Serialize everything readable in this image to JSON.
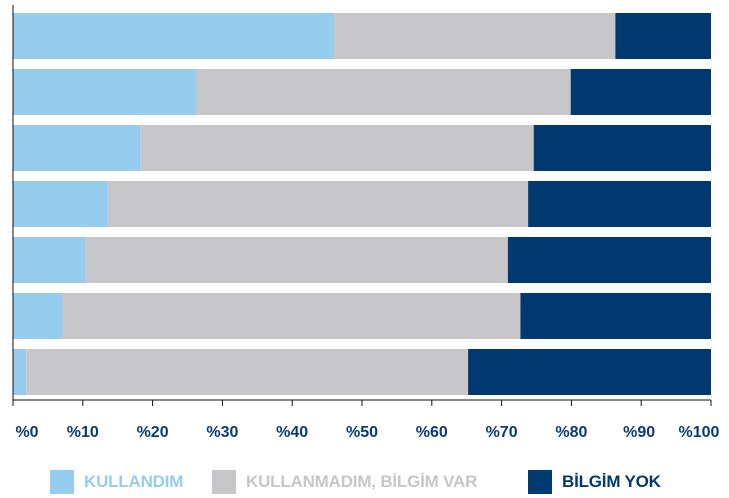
{
  "colors": {
    "kullandim": "#96cdef",
    "kullanmadim": "#c7c6c9",
    "bilgim_yok": "#003a70",
    "axis": "#111111",
    "tick_text": "#0a3a78",
    "legend_text_kullandim": "#96cdef",
    "legend_text_kullanmadim": "#c7c6c9",
    "legend_text_bilgim_yok": "#003a70"
  },
  "chart_data": {
    "type": "bar",
    "orientation": "horizontal",
    "stacked": true,
    "xlim": [
      0,
      100
    ],
    "x_ticks": [
      0,
      10,
      20,
      30,
      40,
      50,
      60,
      70,
      80,
      90,
      100
    ],
    "x_tick_labels": [
      "%0",
      "%10",
      "%20",
      "%30",
      "%40",
      "%50",
      "%60",
      "%70",
      "%80",
      "%90",
      "%100"
    ],
    "rows": 7,
    "series": [
      {
        "name": "KULLANDIM",
        "color": "#96cdef",
        "values": [
          46,
          26.3,
          18.3,
          13.6,
          10.4,
          7.1,
          1.9
        ]
      },
      {
        "name": "KULLANMADIM, BİLGİM VAR",
        "color": "#c7c6c9",
        "values": [
          40.3,
          53.6,
          56.3,
          60.2,
          60.5,
          65.6,
          63.3
        ]
      },
      {
        "name": "BİLGİM YOK",
        "color": "#003a70",
        "values": [
          13.7,
          20.1,
          25.4,
          26.2,
          29.1,
          27.3,
          34.8
        ]
      }
    ],
    "legend": "bottom",
    "grid": false
  },
  "legend": {
    "items": [
      {
        "label": "KULLANDIM"
      },
      {
        "label": "KULLANMADIM, BİLGİM VAR"
      },
      {
        "label": "BİLGİM YOK"
      }
    ]
  }
}
